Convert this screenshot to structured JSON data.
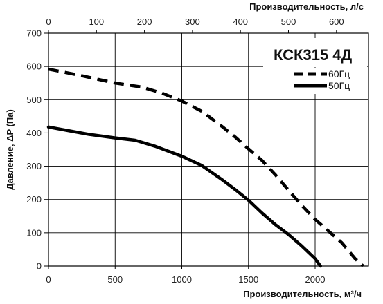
{
  "chart_data": {
    "type": "line",
    "title": "КСК315 4Д",
    "xlabel": "Производительность, м³/ч",
    "x2label": "Производительность, л/с",
    "ylabel": "Давление, ΔP (Па)",
    "xlim": [
      0,
      2400
    ],
    "ylim": [
      0,
      700
    ],
    "x2lim": [
      0,
      666.67
    ],
    "x_ticks": [
      "0",
      "500",
      "1000",
      "1500",
      "2000"
    ],
    "x_tick_values": [
      0,
      500,
      1000,
      1500,
      2000
    ],
    "y_ticks": [
      "0",
      "100",
      "200",
      "300",
      "400",
      "500",
      "600",
      "700"
    ],
    "y_tick_values": [
      0,
      100,
      200,
      300,
      400,
      500,
      600,
      700
    ],
    "x2_ticks": [
      "0",
      "100",
      "200",
      "300",
      "400",
      "500",
      "600"
    ],
    "x2_tick_values": [
      0,
      100,
      200,
      300,
      400,
      500,
      600
    ],
    "grid": true,
    "legend_position": "top-right",
    "series": [
      {
        "name": "60Гц",
        "style": "dashed",
        "color": "#000000",
        "x": [
          0,
          250,
          500,
          700,
          850,
          1000,
          1150,
          1300,
          1400,
          1500,
          1600,
          1700,
          1800,
          1900,
          2000,
          2100,
          2200,
          2300,
          2360
        ],
        "y": [
          592,
          572,
          550,
          538,
          520,
          496,
          465,
          420,
          388,
          352,
          318,
          275,
          228,
          182,
          140,
          105,
          70,
          22,
          0
        ]
      },
      {
        "name": "50Гц",
        "style": "solid",
        "color": "#000000",
        "x": [
          0,
          150,
          300,
          500,
          650,
          800,
          1000,
          1150,
          1300,
          1400,
          1500,
          1600,
          1700,
          1800,
          1900,
          2000,
          2040
        ],
        "y": [
          418,
          407,
          396,
          385,
          378,
          360,
          330,
          302,
          260,
          230,
          198,
          160,
          125,
          95,
          60,
          22,
          0
        ]
      }
    ]
  }
}
